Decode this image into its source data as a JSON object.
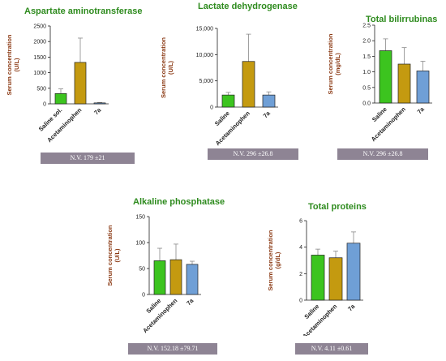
{
  "colors": {
    "title": "#2e8b1e",
    "axis_label": "#8b3a14",
    "nv_box": "#8e8494",
    "bars": [
      "#3cc41f",
      "#c49a10",
      "#6f9fd6"
    ]
  },
  "chart_data": [
    {
      "type": "bar",
      "title": "Aspartate aminotransferase",
      "ylabel": "Serum concentration (U/L)",
      "categories": [
        "Saline sol.",
        "Acetaminophen",
        "7a"
      ],
      "values": [
        330,
        1330,
        30
      ],
      "errors": [
        150,
        780,
        15
      ],
      "ylim": [
        0,
        2500
      ],
      "yticks": [
        "0",
        "500",
        "1000",
        "1500",
        "2000",
        "2500"
      ],
      "note": "N.V. 179 ±21"
    },
    {
      "type": "bar",
      "title": "Lactate dehydrogenase",
      "ylabel": "Serum concentration (U/L)",
      "categories": [
        "Saline",
        "Acetaminophen",
        "7a"
      ],
      "values": [
        2300,
        8700,
        2300
      ],
      "errors": [
        500,
        5200,
        600
      ],
      "ylim": [
        0,
        15000
      ],
      "yticks": [
        "0",
        "5,000",
        "10,000",
        "15,000"
      ],
      "note": "N.V. 296 ±26.8"
    },
    {
      "type": "bar",
      "title": "Total bilirrubinas",
      "ylabel": "Serum concentration (mg/dL)",
      "categories": [
        "Saline",
        "Acetaminophen",
        "7a"
      ],
      "values": [
        1.68,
        1.25,
        1.03
      ],
      "errors": [
        0.38,
        0.53,
        0.31
      ],
      "ylim": [
        0,
        2.5
      ],
      "yticks": [
        "0.0",
        "0.5",
        "1.0",
        "1.5",
        "2.0",
        "2.5"
      ],
      "note": "N.V. 296 ±26.8"
    },
    {
      "type": "bar",
      "title": "Alkaline phosphatase",
      "ylabel": "Serum concentration (U/L)",
      "categories": [
        "Saline",
        "Acetaminophen",
        "7a"
      ],
      "values": [
        65,
        67,
        58
      ],
      "errors": [
        24,
        30,
        6
      ],
      "ylim": [
        0,
        150
      ],
      "yticks": [
        "0",
        "50",
        "100",
        "150"
      ],
      "note": "N.V. 152.18 ±79.71"
    },
    {
      "type": "bar",
      "title": "Total proteins",
      "ylabel": "Serum concentration (g/dL)",
      "categories": [
        "Saline",
        "Acetaminophen",
        "7a"
      ],
      "values": [
        3.4,
        3.2,
        4.3
      ],
      "errors": [
        0.45,
        0.5,
        0.85
      ],
      "ylim": [
        0,
        6
      ],
      "yticks": [
        "0",
        "2",
        "4",
        "6"
      ],
      "note": "N.V. 4.11 ±0.61"
    }
  ]
}
